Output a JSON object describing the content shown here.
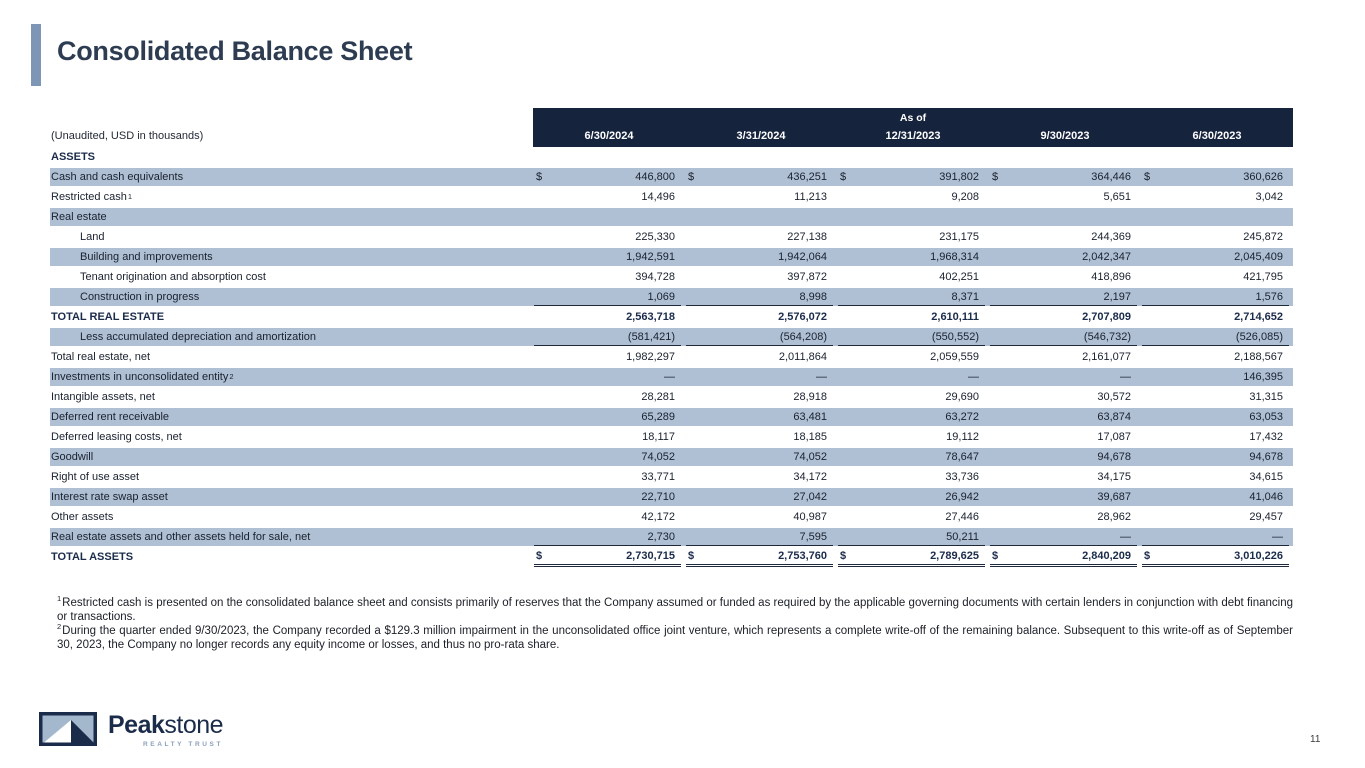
{
  "page": {
    "title": "Consolidated Balance Sheet",
    "page_number": "11"
  },
  "colors": {
    "band": "#16233C",
    "shade": "#AFC0D5",
    "accent_bar": "#7E96B5",
    "navy": "#1B2B4A",
    "title": "#2E3C52",
    "line": "#1F2838",
    "tagline": "#8BA0BC"
  },
  "table": {
    "unaudited_note": "(Unaudited, USD in thousands)",
    "as_of_label": "As of",
    "currency_symbol": "$",
    "columns": [
      "6/30/2024",
      "3/31/2024",
      "12/31/2023",
      "9/30/2023",
      "6/30/2023"
    ],
    "rows": [
      {
        "label": "ASSETS",
        "indent": 0,
        "bold": true,
        "shaded": false,
        "dollar": false,
        "underline": null,
        "values": [
          "",
          "",
          "",
          "",
          ""
        ]
      },
      {
        "label": "Cash and cash equivalents",
        "indent": 0,
        "bold": false,
        "shaded": true,
        "dollar": true,
        "underline": null,
        "values": [
          "446,800",
          "436,251",
          "391,802",
          "364,446",
          "360,626"
        ]
      },
      {
        "label": "Restricted cash",
        "sup": "1",
        "indent": 0,
        "bold": false,
        "shaded": false,
        "dollar": false,
        "underline": null,
        "values": [
          "14,496",
          "11,213",
          "9,208",
          "5,651",
          "3,042"
        ]
      },
      {
        "label": "Real estate",
        "indent": 0,
        "bold": false,
        "shaded": true,
        "dollar": false,
        "underline": null,
        "values": [
          "",
          "",
          "",
          "",
          ""
        ]
      },
      {
        "label": "Land",
        "indent": 1,
        "bold": false,
        "shaded": false,
        "dollar": false,
        "underline": null,
        "values": [
          "225,330",
          "227,138",
          "231,175",
          "244,369",
          "245,872"
        ]
      },
      {
        "label": "Building and improvements",
        "indent": 1,
        "bold": false,
        "shaded": true,
        "dollar": false,
        "underline": null,
        "values": [
          "1,942,591",
          "1,942,064",
          "1,968,314",
          "2,042,347",
          "2,045,409"
        ]
      },
      {
        "label": "Tenant origination and absorption cost",
        "indent": 1,
        "bold": false,
        "shaded": false,
        "dollar": false,
        "underline": null,
        "values": [
          "394,728",
          "397,872",
          "402,251",
          "418,896",
          "421,795"
        ]
      },
      {
        "label": "Construction in progress",
        "indent": 1,
        "bold": false,
        "shaded": true,
        "dollar": false,
        "underline": "single",
        "values": [
          "1,069",
          "8,998",
          "8,371",
          "2,197",
          "1,576"
        ]
      },
      {
        "label": "TOTAL REAL ESTATE",
        "indent": 0,
        "bold": true,
        "shaded": false,
        "dollar": false,
        "underline": null,
        "values": [
          "2,563,718",
          "2,576,072",
          "2,610,111",
          "2,707,809",
          "2,714,652"
        ]
      },
      {
        "label": "Less accumulated depreciation and amortization",
        "indent": 1,
        "bold": false,
        "shaded": true,
        "dollar": false,
        "underline": "single",
        "values": [
          "(581,421)",
          "(564,208)",
          "(550,552)",
          "(546,732)",
          "(526,085)"
        ]
      },
      {
        "label": "Total real estate, net",
        "indent": 0,
        "bold": false,
        "shaded": false,
        "dollar": false,
        "underline": null,
        "values": [
          "1,982,297",
          "2,011,864",
          "2,059,559",
          "2,161,077",
          "2,188,567"
        ]
      },
      {
        "label": "Investments in unconsolidated entity",
        "sup": "2",
        "indent": 0,
        "bold": false,
        "shaded": true,
        "dollar": false,
        "underline": null,
        "values": [
          "—",
          "—",
          "—",
          "—",
          "146,395"
        ]
      },
      {
        "label": "Intangible assets, net",
        "indent": 0,
        "bold": false,
        "shaded": false,
        "dollar": false,
        "underline": null,
        "values": [
          "28,281",
          "28,918",
          "29,690",
          "30,572",
          "31,315"
        ]
      },
      {
        "label": "Deferred rent receivable",
        "indent": 0,
        "bold": false,
        "shaded": true,
        "dollar": false,
        "underline": null,
        "values": [
          "65,289",
          "63,481",
          "63,272",
          "63,874",
          "63,053"
        ]
      },
      {
        "label": "Deferred leasing costs, net",
        "indent": 0,
        "bold": false,
        "shaded": false,
        "dollar": false,
        "underline": null,
        "values": [
          "18,117",
          "18,185",
          "19,112",
          "17,087",
          "17,432"
        ]
      },
      {
        "label": "Goodwill",
        "indent": 0,
        "bold": false,
        "shaded": true,
        "dollar": false,
        "underline": null,
        "values": [
          "74,052",
          "74,052",
          "78,647",
          "94,678",
          "94,678"
        ]
      },
      {
        "label": "Right of use asset",
        "indent": 0,
        "bold": false,
        "shaded": false,
        "dollar": false,
        "underline": null,
        "values": [
          "33,771",
          "34,172",
          "33,736",
          "34,175",
          "34,615"
        ]
      },
      {
        "label": "Interest rate swap asset",
        "indent": 0,
        "bold": false,
        "shaded": true,
        "dollar": false,
        "underline": null,
        "values": [
          "22,710",
          "27,042",
          "26,942",
          "39,687",
          "41,046"
        ]
      },
      {
        "label": "Other assets",
        "indent": 0,
        "bold": false,
        "shaded": false,
        "dollar": false,
        "underline": null,
        "values": [
          "42,172",
          "40,987",
          "27,446",
          "28,962",
          "29,457"
        ]
      },
      {
        "label": "Real estate assets and other assets held for sale, net",
        "indent": 0,
        "bold": false,
        "shaded": true,
        "dollar": false,
        "underline": "single",
        "values": [
          "2,730",
          "7,595",
          "50,211",
          "—",
          "—"
        ]
      },
      {
        "label": "TOTAL ASSETS",
        "indent": 0,
        "bold": true,
        "shaded": false,
        "dollar": true,
        "underline": "double",
        "values": [
          "2,730,715",
          "2,753,760",
          "2,789,625",
          "2,840,209",
          "3,010,226"
        ]
      }
    ]
  },
  "footnotes": [
    {
      "sup": "1",
      "text": "Restricted cash is presented on the consolidated balance sheet and consists primarily of reserves that the Company assumed or funded as required by the applicable governing documents with certain lenders in conjunction with debt financing or transactions."
    },
    {
      "sup": "2",
      "text": "During the quarter ended 9/30/2023, the Company recorded a $129.3 million impairment in the unconsolidated office joint venture, which represents a complete write-off of the remaining balance. Subsequent to this write-off as of September 30, 2023, the Company no longer records any equity income or losses, and thus no pro-rata share."
    }
  ],
  "logo": {
    "brand_bold": "Peak",
    "brand_regular": "stone",
    "tagline": "REALTY TRUST"
  }
}
